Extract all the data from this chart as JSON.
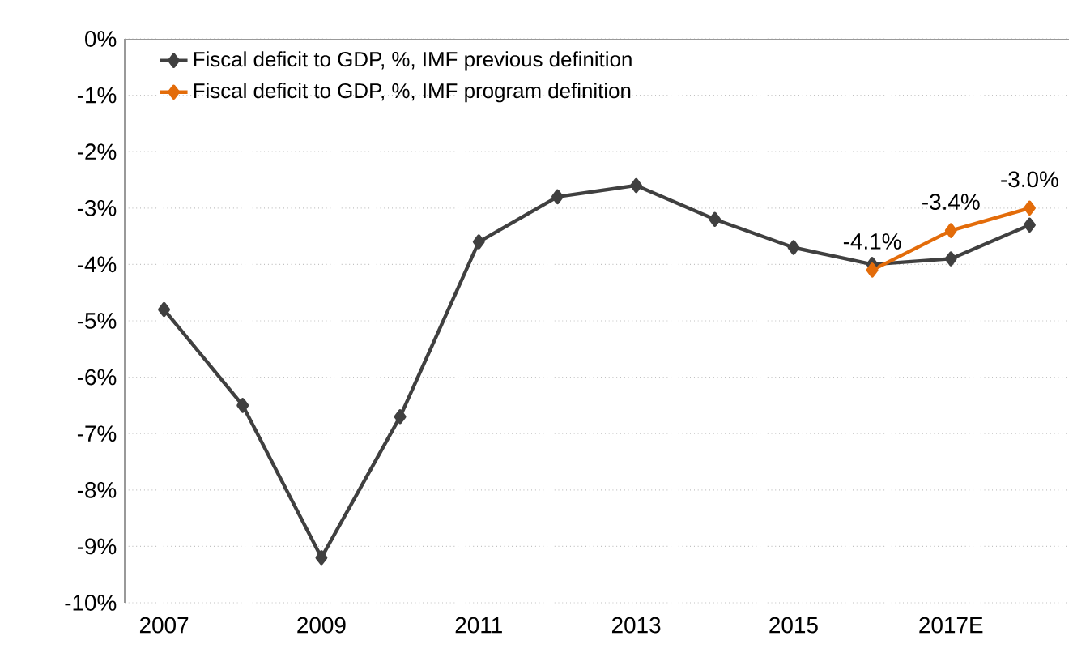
{
  "chart_data": {
    "type": "line",
    "categories": [
      "2007",
      null,
      "2009",
      null,
      "2011",
      null,
      "2013",
      null,
      "2015",
      null,
      "2017E",
      null
    ],
    "series": [
      {
        "name": "Fiscal deficit to GDP, %, IMF previous definition",
        "color": "#404040",
        "values": [
          -4.8,
          -6.5,
          -9.2,
          -6.7,
          -3.6,
          -2.8,
          -2.6,
          -3.2,
          -3.7,
          -4.0,
          -3.9,
          -3.3
        ]
      },
      {
        "name": "Fiscal deficit to GDP, %, IMF program definition",
        "color": "#e36c0a",
        "values": [
          null,
          null,
          null,
          null,
          null,
          null,
          null,
          null,
          null,
          -4.1,
          -3.4,
          -3.0
        ],
        "value_labels": [
          null,
          null,
          null,
          null,
          null,
          null,
          null,
          null,
          null,
          "-4.1%",
          "-3.4%",
          "-3.0%"
        ]
      }
    ],
    "ylim": [
      -10,
      0
    ],
    "yticks": [
      {
        "value": -10,
        "label": "-10%"
      },
      {
        "value": -9,
        "label": "-9%"
      },
      {
        "value": -8,
        "label": "-8%"
      },
      {
        "value": -7,
        "label": "-7%"
      },
      {
        "value": -6,
        "label": "-6%"
      },
      {
        "value": -5,
        "label": "-5%"
      },
      {
        "value": -4,
        "label": "-4%"
      },
      {
        "value": -3,
        "label": "-3%"
      },
      {
        "value": -2,
        "label": "-2%"
      },
      {
        "value": -1,
        "label": "-1%"
      },
      {
        "value": 0,
        "label": "0%"
      }
    ],
    "grid": "y",
    "legend": "top left",
    "marker": "diamond",
    "line_style": "solid"
  }
}
